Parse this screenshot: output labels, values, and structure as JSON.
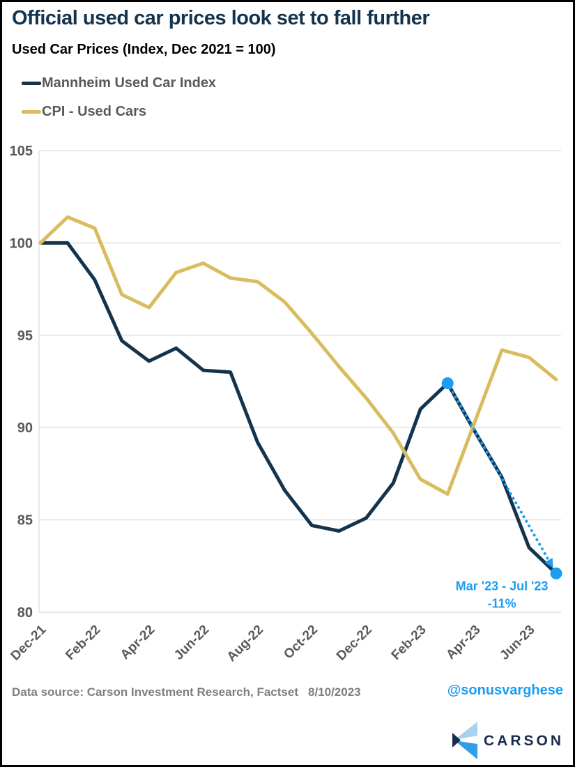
{
  "page": {
    "title": "Official used car prices look set to fall further",
    "subtitle": "Used Car Prices (Index, Dec 2021 = 100)"
  },
  "legend": {
    "items": [
      {
        "label": "Mannheim Used Car Index",
        "color": "#14344E"
      },
      {
        "label": "CPI - Used Cars",
        "color": "#D9BC5E"
      }
    ]
  },
  "chart_data": {
    "type": "line",
    "x": [
      "Dec-21",
      "Jan-22",
      "Feb-22",
      "Mar-22",
      "Apr-22",
      "May-22",
      "Jun-22",
      "Jul-22",
      "Aug-22",
      "Sep-22",
      "Oct-22",
      "Nov-22",
      "Dec-22",
      "Jan-23",
      "Feb-23",
      "Mar-23",
      "Apr-23",
      "May-23",
      "Jun-23",
      "Jul-23"
    ],
    "x_tick_labels": [
      "Dec-21",
      "Feb-22",
      "Apr-22",
      "Jun-22",
      "Aug-22",
      "Oct-22",
      "Dec-22",
      "Feb-23",
      "Apr-23",
      "Jun-23"
    ],
    "x_tick_every": 2,
    "ylim": [
      80,
      105
    ],
    "y_ticks": [
      80,
      85,
      90,
      95,
      100,
      105
    ],
    "grid": "horizontal",
    "grid_color": "#D9D9D9",
    "axis_label_color": "#595959",
    "series": [
      {
        "name": "Mannheim Used Car Index",
        "color": "#14344E",
        "values": [
          100,
          100,
          98,
          94.7,
          93.6,
          94.3,
          93.1,
          93,
          89.2,
          86.6,
          84.7,
          84.4,
          85.1,
          87,
          91,
          92.4,
          89.8,
          87.3,
          83.5,
          82.1
        ]
      },
      {
        "name": "CPI - Used Cars",
        "color": "#D9BC5E",
        "values": [
          100,
          101.4,
          100.8,
          97.2,
          96.5,
          98.4,
          98.9,
          98.1,
          97.9,
          96.8,
          95.1,
          93.3,
          91.6,
          89.7,
          87.2,
          86.4,
          90.3,
          94.2,
          93.8,
          92.6
        ]
      }
    ],
    "annotation": {
      "label_line1": "Mar '23 - Jul '23",
      "label_line2": "-11%",
      "color": "#1B9DF0",
      "series": "Mannheim Used Car Index",
      "from_x": "Mar-23",
      "to_x": "Jul-23"
    }
  },
  "footer": {
    "source": "Data source: Carson Investment Research, Factset",
    "date": "8/10/2023",
    "handle": "@sonusvarghese",
    "handle_color": "#1B9DF0"
  },
  "logo": {
    "wordmark": "CARSON"
  }
}
